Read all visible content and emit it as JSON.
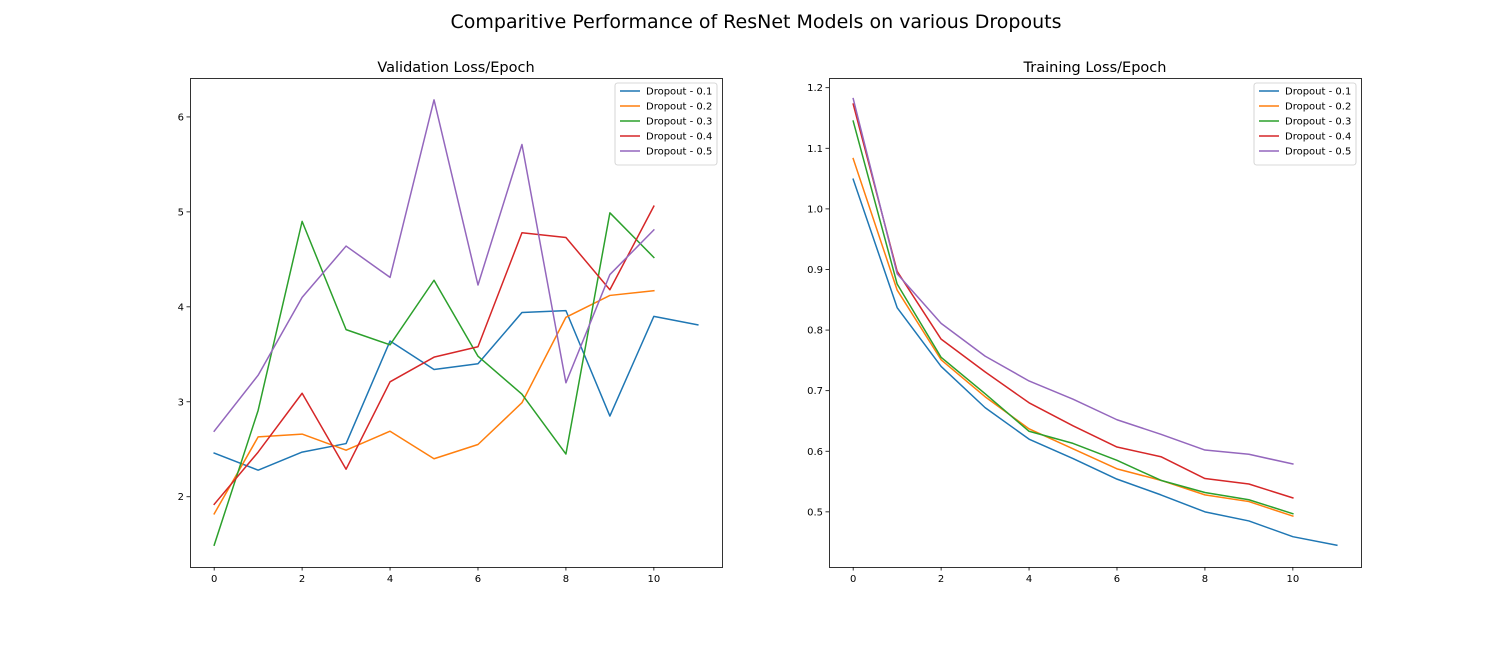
{
  "figure": {
    "title": "Comparitive Performance of ResNet Models on various Dropouts"
  },
  "chart_data": [
    {
      "type": "line",
      "title": "Validation Loss/Epoch",
      "xlabel": "",
      "ylabel": "",
      "xlim": [
        -0.55,
        11.55
      ],
      "ylim": [
        1.26,
        6.41
      ],
      "xticks": [
        0,
        2,
        4,
        6,
        8,
        10
      ],
      "yticks": [
        2,
        3,
        4,
        5,
        6
      ],
      "grid": false,
      "legend_position": "top-right",
      "series": [
        {
          "name": "Dropout - 0.1",
          "color": "#1f77b4",
          "x": [
            0,
            1,
            2,
            3,
            4,
            5,
            6,
            7,
            8,
            9,
            10,
            11
          ],
          "values": [
            2.46,
            2.28,
            2.47,
            2.56,
            3.64,
            3.34,
            3.4,
            3.94,
            3.96,
            2.85,
            3.9,
            3.81
          ]
        },
        {
          "name": "Dropout - 0.2",
          "color": "#ff7f0e",
          "x": [
            0,
            1,
            2,
            3,
            4,
            5,
            6,
            7,
            8,
            9,
            10
          ],
          "values": [
            1.82,
            2.63,
            2.66,
            2.49,
            2.69,
            2.4,
            2.55,
            2.99,
            3.89,
            4.12,
            4.17
          ]
        },
        {
          "name": "Dropout - 0.3",
          "color": "#2ca02c",
          "x": [
            0,
            1,
            2,
            3,
            4,
            5,
            6,
            7,
            8,
            9,
            10
          ],
          "values": [
            1.49,
            2.91,
            4.9,
            3.76,
            3.6,
            4.28,
            3.48,
            3.08,
            2.45,
            4.99,
            4.52
          ]
        },
        {
          "name": "Dropout - 0.4",
          "color": "#d62728",
          "x": [
            0,
            1,
            2,
            3,
            4,
            5,
            6,
            7,
            8,
            9,
            10
          ],
          "values": [
            1.92,
            2.47,
            3.09,
            2.29,
            3.21,
            3.47,
            3.58,
            4.78,
            4.73,
            4.18,
            5.06
          ]
        },
        {
          "name": "Dropout - 0.5",
          "color": "#9467bd",
          "x": [
            0,
            1,
            2,
            3,
            4,
            5,
            6,
            7,
            8,
            9,
            10
          ],
          "values": [
            2.69,
            3.28,
            4.1,
            4.64,
            4.31,
            6.18,
            4.23,
            5.71,
            3.2,
            4.34,
            4.81
          ]
        }
      ]
    },
    {
      "type": "line",
      "title": "Training Loss/Epoch",
      "xlabel": "",
      "ylabel": "",
      "xlim": [
        -0.55,
        11.55
      ],
      "ylim": [
        0.409,
        1.216
      ],
      "xticks": [
        0,
        2,
        4,
        6,
        8,
        10
      ],
      "yticks": [
        0.5,
        0.6,
        0.7,
        0.8,
        0.9,
        1.0,
        1.1,
        1.2
      ],
      "grid": false,
      "legend_position": "top-right",
      "series": [
        {
          "name": "Dropout - 0.1",
          "color": "#1f77b4",
          "x": [
            0,
            1,
            2,
            3,
            4,
            5,
            6,
            7,
            8,
            9,
            10,
            11
          ],
          "values": [
            1.049,
            0.837,
            0.74,
            0.672,
            0.62,
            0.588,
            0.554,
            0.528,
            0.5,
            0.485,
            0.459,
            0.445
          ]
        },
        {
          "name": "Dropout - 0.2",
          "color": "#ff7f0e",
          "x": [
            0,
            1,
            2,
            3,
            4,
            5,
            6,
            7,
            8,
            9,
            10
          ],
          "values": [
            1.083,
            0.866,
            0.751,
            0.69,
            0.637,
            0.604,
            0.571,
            0.552,
            0.528,
            0.517,
            0.493
          ]
        },
        {
          "name": "Dropout - 0.3",
          "color": "#2ca02c",
          "x": [
            0,
            1,
            2,
            3,
            4,
            5,
            6,
            7,
            8,
            9,
            10
          ],
          "values": [
            1.145,
            0.876,
            0.755,
            0.695,
            0.633,
            0.613,
            0.585,
            0.552,
            0.532,
            0.52,
            0.497
          ]
        },
        {
          "name": "Dropout - 0.4",
          "color": "#d62728",
          "x": [
            0,
            1,
            2,
            3,
            4,
            5,
            6,
            7,
            8,
            9,
            10
          ],
          "values": [
            1.173,
            0.897,
            0.785,
            0.731,
            0.68,
            0.642,
            0.607,
            0.591,
            0.555,
            0.546,
            0.523
          ]
        },
        {
          "name": "Dropout - 0.5",
          "color": "#9467bd",
          "x": [
            0,
            1,
            2,
            3,
            4,
            5,
            6,
            7,
            8,
            9,
            10
          ],
          "values": [
            1.182,
            0.893,
            0.811,
            0.757,
            0.716,
            0.686,
            0.652,
            0.628,
            0.602,
            0.595,
            0.579
          ]
        }
      ]
    }
  ]
}
